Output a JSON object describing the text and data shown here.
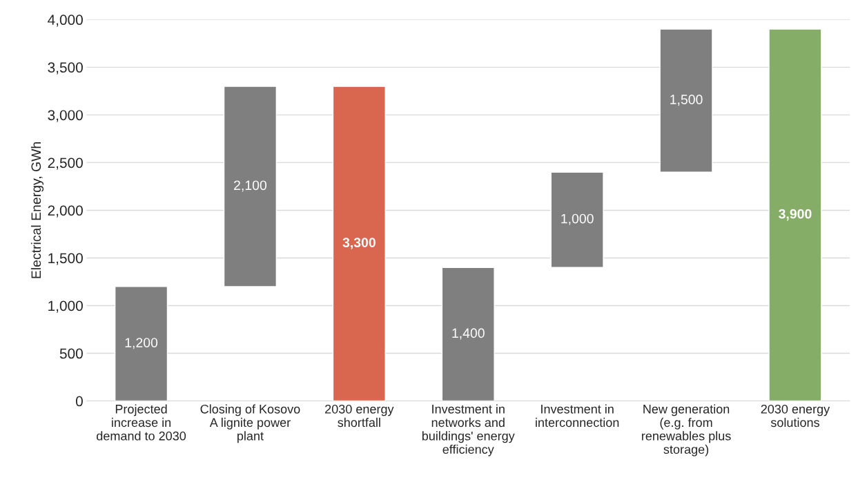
{
  "chart_data": {
    "type": "bar",
    "categories": [
      "Projected\nincrease in\ndemand to 2030",
      "Closing of Kosovo\nA lignite power\nplant",
      "2030 energy\nshortfall",
      "Investment in\nnetworks and\nbuildings' energy\nefficiency",
      "Investment in\ninterconnection",
      "New generation\n(e.g. from\nrenewables plus\nstorage)",
      "2030 energy\nsolutions"
    ],
    "values": [
      1200,
      2100,
      3300,
      1400,
      1000,
      1500,
      3900
    ],
    "base": [
      0,
      1200,
      0,
      0,
      1400,
      2400,
      0
    ],
    "colors": [
      "#7f7f7f",
      "#7f7f7f",
      "#d9664f",
      "#7f7f7f",
      "#7f7f7f",
      "#7f7f7f",
      "#86ad67"
    ],
    "value_labels": [
      "1,200",
      "2,100",
      "3,300",
      "1,400",
      "1,000",
      "1,500",
      "3,900"
    ],
    "ylabel": "Electrical Energy, GWh",
    "ylim": [
      0,
      4000
    ],
    "yticks": [
      {
        "value": 0,
        "label": "0"
      },
      {
        "value": 500,
        "label": "500"
      },
      {
        "value": 1000,
        "label": "1,000"
      },
      {
        "value": 1500,
        "label": "1,500"
      },
      {
        "value": 2000,
        "label": "2,000"
      },
      {
        "value": 2500,
        "label": "2,500"
      },
      {
        "value": 3000,
        "label": "3,000"
      },
      {
        "value": 3500,
        "label": "3,500"
      },
      {
        "value": 4000,
        "label": "4,000"
      }
    ],
    "grid": "y",
    "legend": false
  }
}
